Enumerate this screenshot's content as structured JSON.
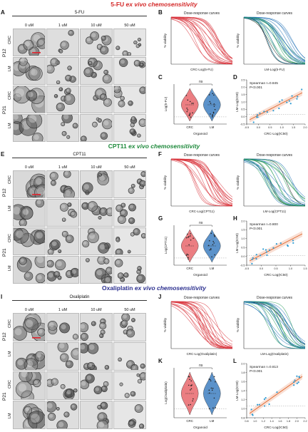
{
  "sections": [
    {
      "title_drug": "5-FU",
      "title_rest": "ex vivo chemosensitivity",
      "title_color": "#d42a2a",
      "panel_labels": [
        "A",
        "B",
        "C",
        "D"
      ],
      "drug_header": "5-FU",
      "concentrations": [
        "0 uM",
        "1 uM",
        "10 uM",
        "50 uM"
      ],
      "patients": [
        "P12",
        "P21"
      ],
      "row_types": [
        "CRC",
        "LM"
      ],
      "dose_response": {
        "title_left": "Dose-response curves",
        "title_right": "Dose-response curves",
        "ylabel": "% viability",
        "xlabel_left": "CRC-Log(5-FU)",
        "xlabel_right": "LM-Log(5-FU)",
        "left_color": "#d9363e",
        "right_colors": [
          "#1f6fb5",
          "#2a9d5c",
          "#111111"
        ]
      },
      "violin": {
        "ylabel": "Log(5-FU)",
        "xlabel": "Organoid",
        "categories": [
          "CRC",
          "LM"
        ],
        "annotation": "ns",
        "colors": [
          "#e8676c",
          "#3e7fc1"
        ]
      },
      "correlation": {
        "annotation_1": "Spearman r=0.845",
        "annotation_2": "P<0.001",
        "xlabel": "CRC-Log(IC50)",
        "ylabel": "LM-Log(IC50)",
        "x_ticks": [
          "-0.5",
          "0.0",
          "0.5",
          "1.0",
          "1.5",
          "2.0"
        ],
        "y_ticks": [
          "2.5",
          "2.0",
          "1.5",
          "1.0",
          "0.5",
          "0.0",
          "-0.5"
        ]
      }
    },
    {
      "title_drug": "CPT11",
      "title_rest": "ex vivo chemosensitivity",
      "title_color": "#1f8a3c",
      "panel_labels": [
        "E",
        "F",
        "G",
        "H"
      ],
      "drug_header": "CPT11",
      "concentrations": [
        "0 uM",
        "1 uM",
        "10 uM",
        "50 uM"
      ],
      "patients": [
        "P12",
        "P21"
      ],
      "row_types": [
        "CRC",
        "LM"
      ],
      "dose_response": {
        "title_left": "Dose-response curves",
        "title_right": "Dose-response curves",
        "ylabel": "% viability",
        "xlabel_left": "CRC-Log(CPT11)",
        "xlabel_right": "LM-Log(CPT11)",
        "left_color": "#d9363e",
        "right_colors": [
          "#1f6fb5",
          "#2a9d5c",
          "#111111"
        ]
      },
      "violin": {
        "ylabel": "Log(CPT11)",
        "xlabel": "Organoid",
        "categories": [
          "CRC",
          "LM"
        ],
        "annotation": "ns",
        "colors": [
          "#e8676c",
          "#3e7fc1"
        ]
      },
      "correlation": {
        "annotation_1": "Spearman r=0.800",
        "annotation_2": "P<0.001",
        "xlabel": "CRC-Log(IC50)",
        "ylabel": "LM-Log(IC50)",
        "x_ticks": [
          "-0.5",
          "0.0",
          "0.5",
          "1.0",
          "1.5"
        ],
        "y_ticks": [
          "2.0",
          "1.5",
          "1.0",
          "0.5",
          "0.0",
          "-0.5"
        ]
      }
    },
    {
      "title_drug": "Oxaliplatin",
      "title_rest": "ex vivo chemosensitivity",
      "title_color": "#2b2f8f",
      "panel_labels": [
        "I",
        "J",
        "K",
        "L"
      ],
      "drug_header": "Oxaliplatin",
      "concentrations": [
        "0 uM",
        "1 uM",
        "10 uM",
        "50 uM"
      ],
      "patients": [
        "P12",
        "P21"
      ],
      "row_types": [
        "CRC",
        "LM"
      ],
      "dose_response": {
        "title_left": "Dose-response curves",
        "title_right": "Dose-response curves",
        "ylabel": "% viability",
        "xlabel_left": "CRC-Log(Oxaliplatin)",
        "xlabel_right": "LM-Log(Oxaliplatin)",
        "left_color": "#d9363e",
        "right_colors": [
          "#1f6fb5",
          "#2a9d5c",
          "#111111"
        ]
      },
      "violin": {
        "ylabel": "Log(Oxaliplatin)",
        "xlabel": "Organoid",
        "categories": [
          "CRC",
          "LM"
        ],
        "annotation": "ns",
        "colors": [
          "#e8676c",
          "#3e7fc1"
        ]
      },
      "correlation": {
        "annotation_1": "Spearman r=0.813",
        "annotation_2": "P<0.001",
        "xlabel": "CRC-Log(IC50)",
        "ylabel": "LM-Log(IC50)",
        "x_ticks": [
          "0.8",
          "1.0",
          "1.2",
          "1.4",
          "1.6",
          "1.8",
          "2.0",
          "2.2"
        ],
        "y_ticks": [
          "2.0",
          "1.8",
          "1.6",
          "1.4",
          "1.2",
          "1.0",
          "0.8"
        ]
      }
    }
  ]
}
